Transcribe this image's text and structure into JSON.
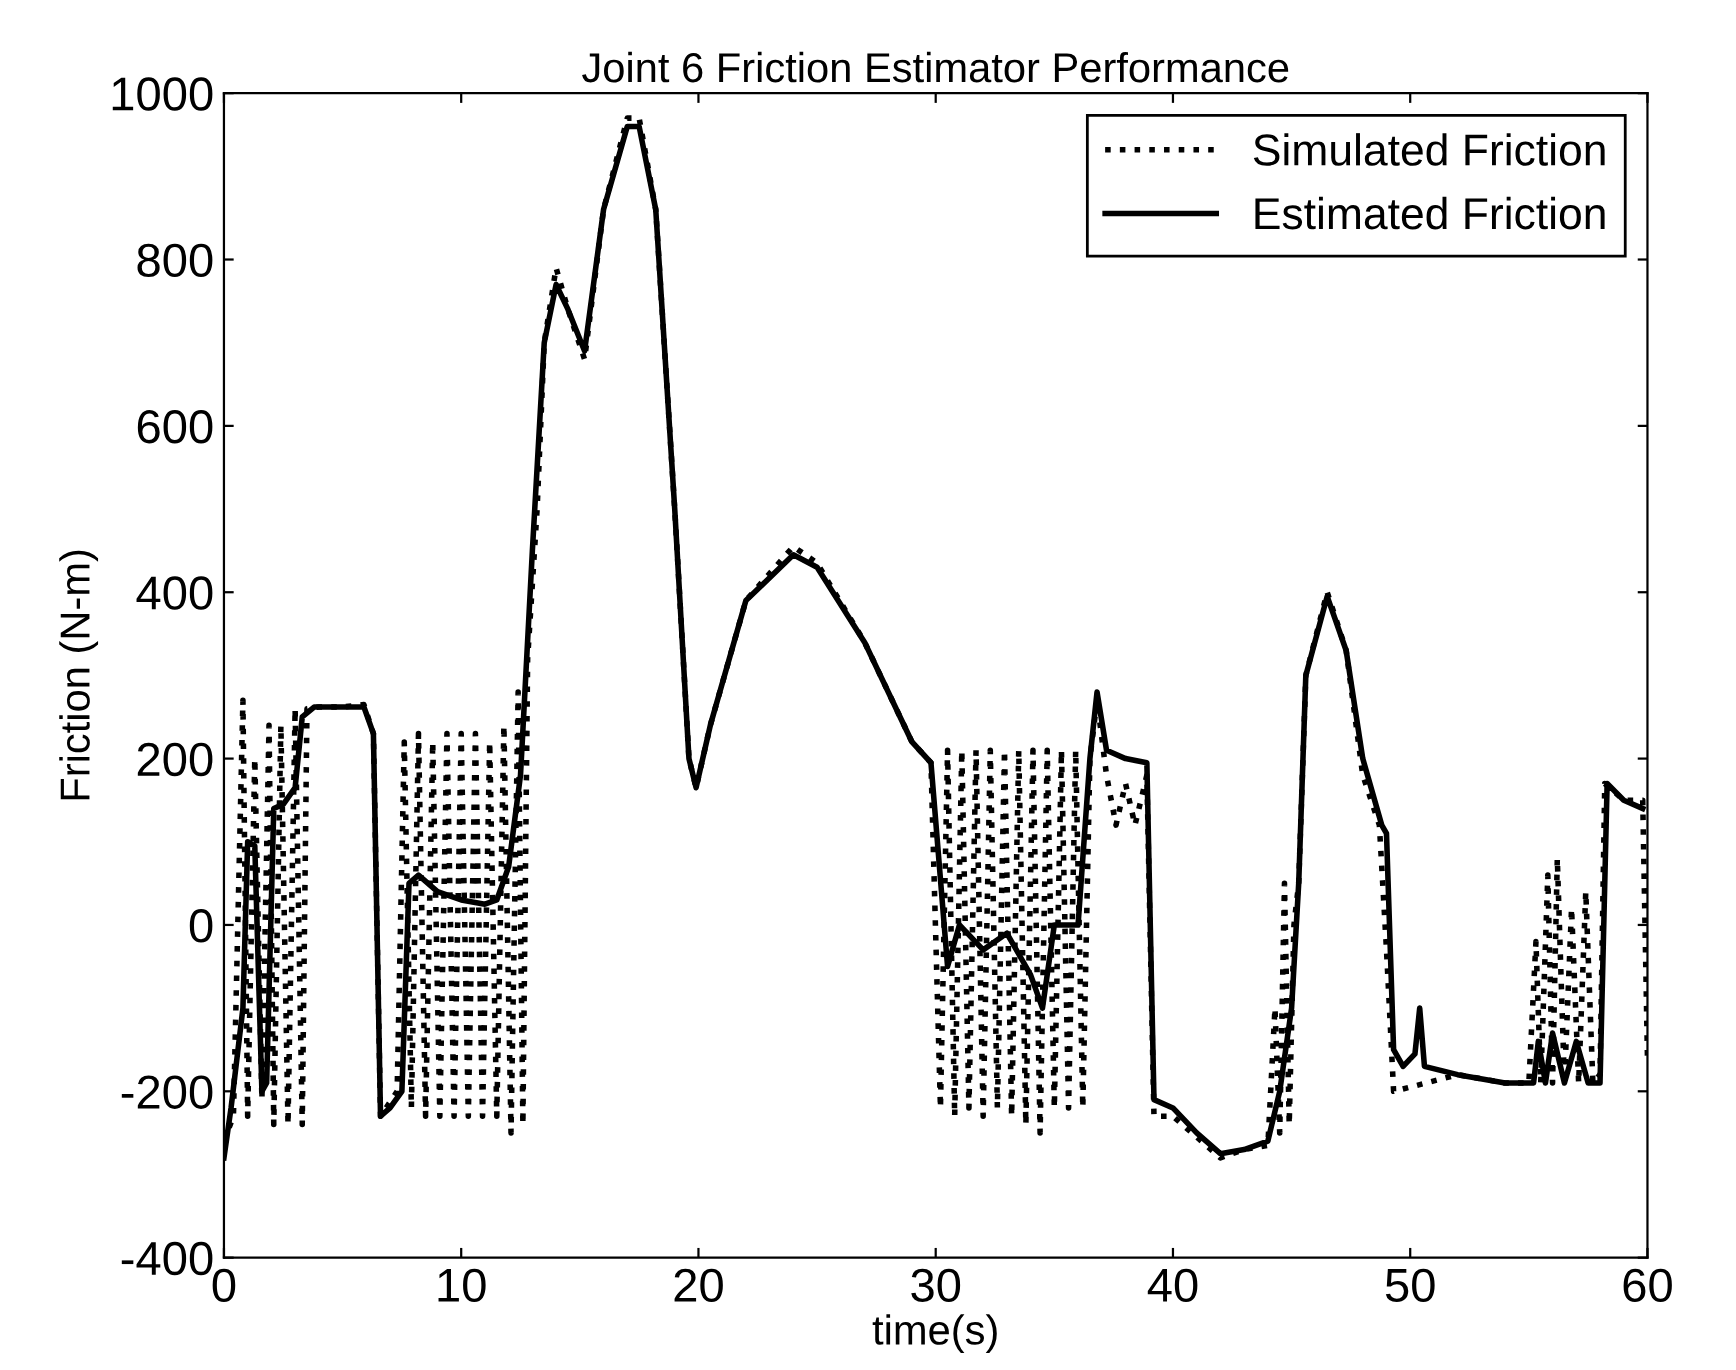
{
  "chart_data": {
    "type": "line",
    "title": "Joint 6 Friction Estimator Performance",
    "xlabel": "time(s)",
    "ylabel": "Friction (N-m)",
    "xlim": [
      0,
      60
    ],
    "ylim": [
      -400,
      1000
    ],
    "xticks": [
      0,
      10,
      20,
      30,
      40,
      50,
      60
    ],
    "yticks": [
      -400,
      -200,
      0,
      200,
      400,
      600,
      800,
      1000
    ],
    "grid": false,
    "legend": "top right",
    "series": [
      {
        "name": "Simulated Friction",
        "color": "#000000",
        "line_style": "dotted",
        "x": [
          0,
          0.4,
          0.8,
          1.0,
          1.3,
          1.6,
          1.9,
          2.1,
          2.4,
          2.7,
          3.0,
          3.3,
          3.5,
          4,
          5,
          5.9,
          6.3,
          6.6,
          7.3,
          7.6,
          7.9,
          8.2,
          8.5,
          8.8,
          9.1,
          9.4,
          9.7,
          10,
          10.3,
          10.6,
          10.9,
          11.2,
          11.5,
          11.8,
          12.1,
          12.4,
          12.6,
          12.8,
          13.2,
          13.5,
          14,
          14.5,
          15.2,
          16,
          17,
          17.5,
          18.2,
          19,
          19.6,
          19.9,
          20.5,
          22,
          24,
          25,
          27,
          29,
          29.8,
          30.2,
          30.5,
          30.8,
          31.1,
          31.4,
          31.7,
          32,
          32.3,
          32.6,
          32.9,
          33.2,
          33.5,
          33.8,
          34.1,
          34.4,
          34.7,
          35,
          35.3,
          35.6,
          35.9,
          36.2,
          36.5,
          36.8,
          37.2,
          37.6,
          38,
          38.4,
          38.9,
          39.2,
          40,
          41,
          42,
          43,
          44,
          44.3,
          44.5,
          44.7,
          44.9,
          45.1,
          45.3,
          45.6,
          46.5,
          47.3,
          48,
          48.7,
          49,
          49.3,
          50,
          52,
          54,
          55,
          55.3,
          55.5,
          55.8,
          56,
          56.2,
          56.5,
          56.8,
          57.1,
          57.4,
          57.7,
          58,
          58.2,
          59,
          59.8,
          60
        ],
        "values": [
          -260,
          -230,
          270,
          -230,
          200,
          -210,
          240,
          -240,
          240,
          -240,
          260,
          -240,
          260,
          262,
          262,
          265,
          230,
          -230,
          -200,
          220,
          -220,
          230,
          -230,
          220,
          -230,
          230,
          -230,
          230,
          -230,
          230,
          -230,
          220,
          -230,
          240,
          -250,
          280,
          -240,
          320,
          500,
          700,
          790,
          740,
          680,
          860,
          970,
          970,
          860,
          500,
          200,
          165,
          240,
          390,
          455,
          435,
          340,
          220,
          195,
          -220,
          210,
          -230,
          210,
          -220,
          210,
          -230,
          210,
          -220,
          210,
          -230,
          210,
          -240,
          210,
          -250,
          210,
          -220,
          210,
          -220,
          210,
          -220,
          200,
          270,
          180,
          120,
          170,
          120,
          180,
          -230,
          -230,
          -255,
          -280,
          -270,
          -265,
          -100,
          -250,
          50,
          -240,
          0,
          50,
          300,
          400,
          330,
          180,
          120,
          -30,
          -200,
          -195,
          -180,
          -190,
          -190,
          -20,
          -190,
          60,
          -190,
          80,
          -190,
          20,
          -190,
          40,
          -190,
          -180,
          170,
          150,
          150,
          -160
        ]
      },
      {
        "name": "Estimated Friction",
        "color": "#000000",
        "line_style": "solid",
        "x": [
          0,
          0.3,
          0.8,
          1.0,
          1.3,
          1.6,
          1.8,
          2.1,
          2.5,
          3.0,
          3.3,
          3.8,
          5,
          5.9,
          6.3,
          6.6,
          7,
          7.5,
          7.8,
          8.2,
          9,
          10,
          11,
          11.5,
          12,
          12.5,
          13,
          13.5,
          14,
          14.5,
          15.2,
          16,
          17,
          17.5,
          18.2,
          19,
          19.6,
          19.9,
          20.5,
          22,
          24,
          25,
          27,
          29,
          29.8,
          30.5,
          31,
          32,
          33,
          34,
          34.5,
          35,
          36,
          36.5,
          36.8,
          37.2,
          38,
          38.9,
          39.2,
          40,
          41,
          42,
          43,
          44,
          44.5,
          45,
          45.3,
          45.6,
          46.5,
          47.3,
          48,
          48.8,
          49,
          49.3,
          49.7,
          50.2,
          50.4,
          50.6,
          52,
          54,
          55.2,
          55.4,
          55.7,
          56,
          56.5,
          57,
          57.5,
          58,
          58.3,
          59,
          59.8
        ],
        "values": [
          -280,
          -220,
          -100,
          100,
          95,
          -200,
          -190,
          140,
          145,
          165,
          250,
          262,
          262,
          262,
          230,
          -230,
          -220,
          -200,
          50,
          60,
          40,
          30,
          25,
          30,
          70,
          180,
          450,
          700,
          770,
          740,
          690,
          860,
          960,
          960,
          860,
          500,
          200,
          165,
          240,
          390,
          445,
          430,
          340,
          220,
          195,
          -50,
          0,
          -30,
          -10,
          -60,
          -100,
          0,
          0,
          200,
          280,
          210,
          200,
          195,
          -210,
          -220,
          -250,
          -275,
          -270,
          -260,
          -200,
          -100,
          50,
          300,
          395,
          330,
          200,
          120,
          110,
          -150,
          -170,
          -155,
          -100,
          -170,
          -180,
          -190,
          -190,
          -140,
          -190,
          -130,
          -190,
          -140,
          -190,
          -190,
          170,
          150,
          140
        ]
      }
    ]
  }
}
